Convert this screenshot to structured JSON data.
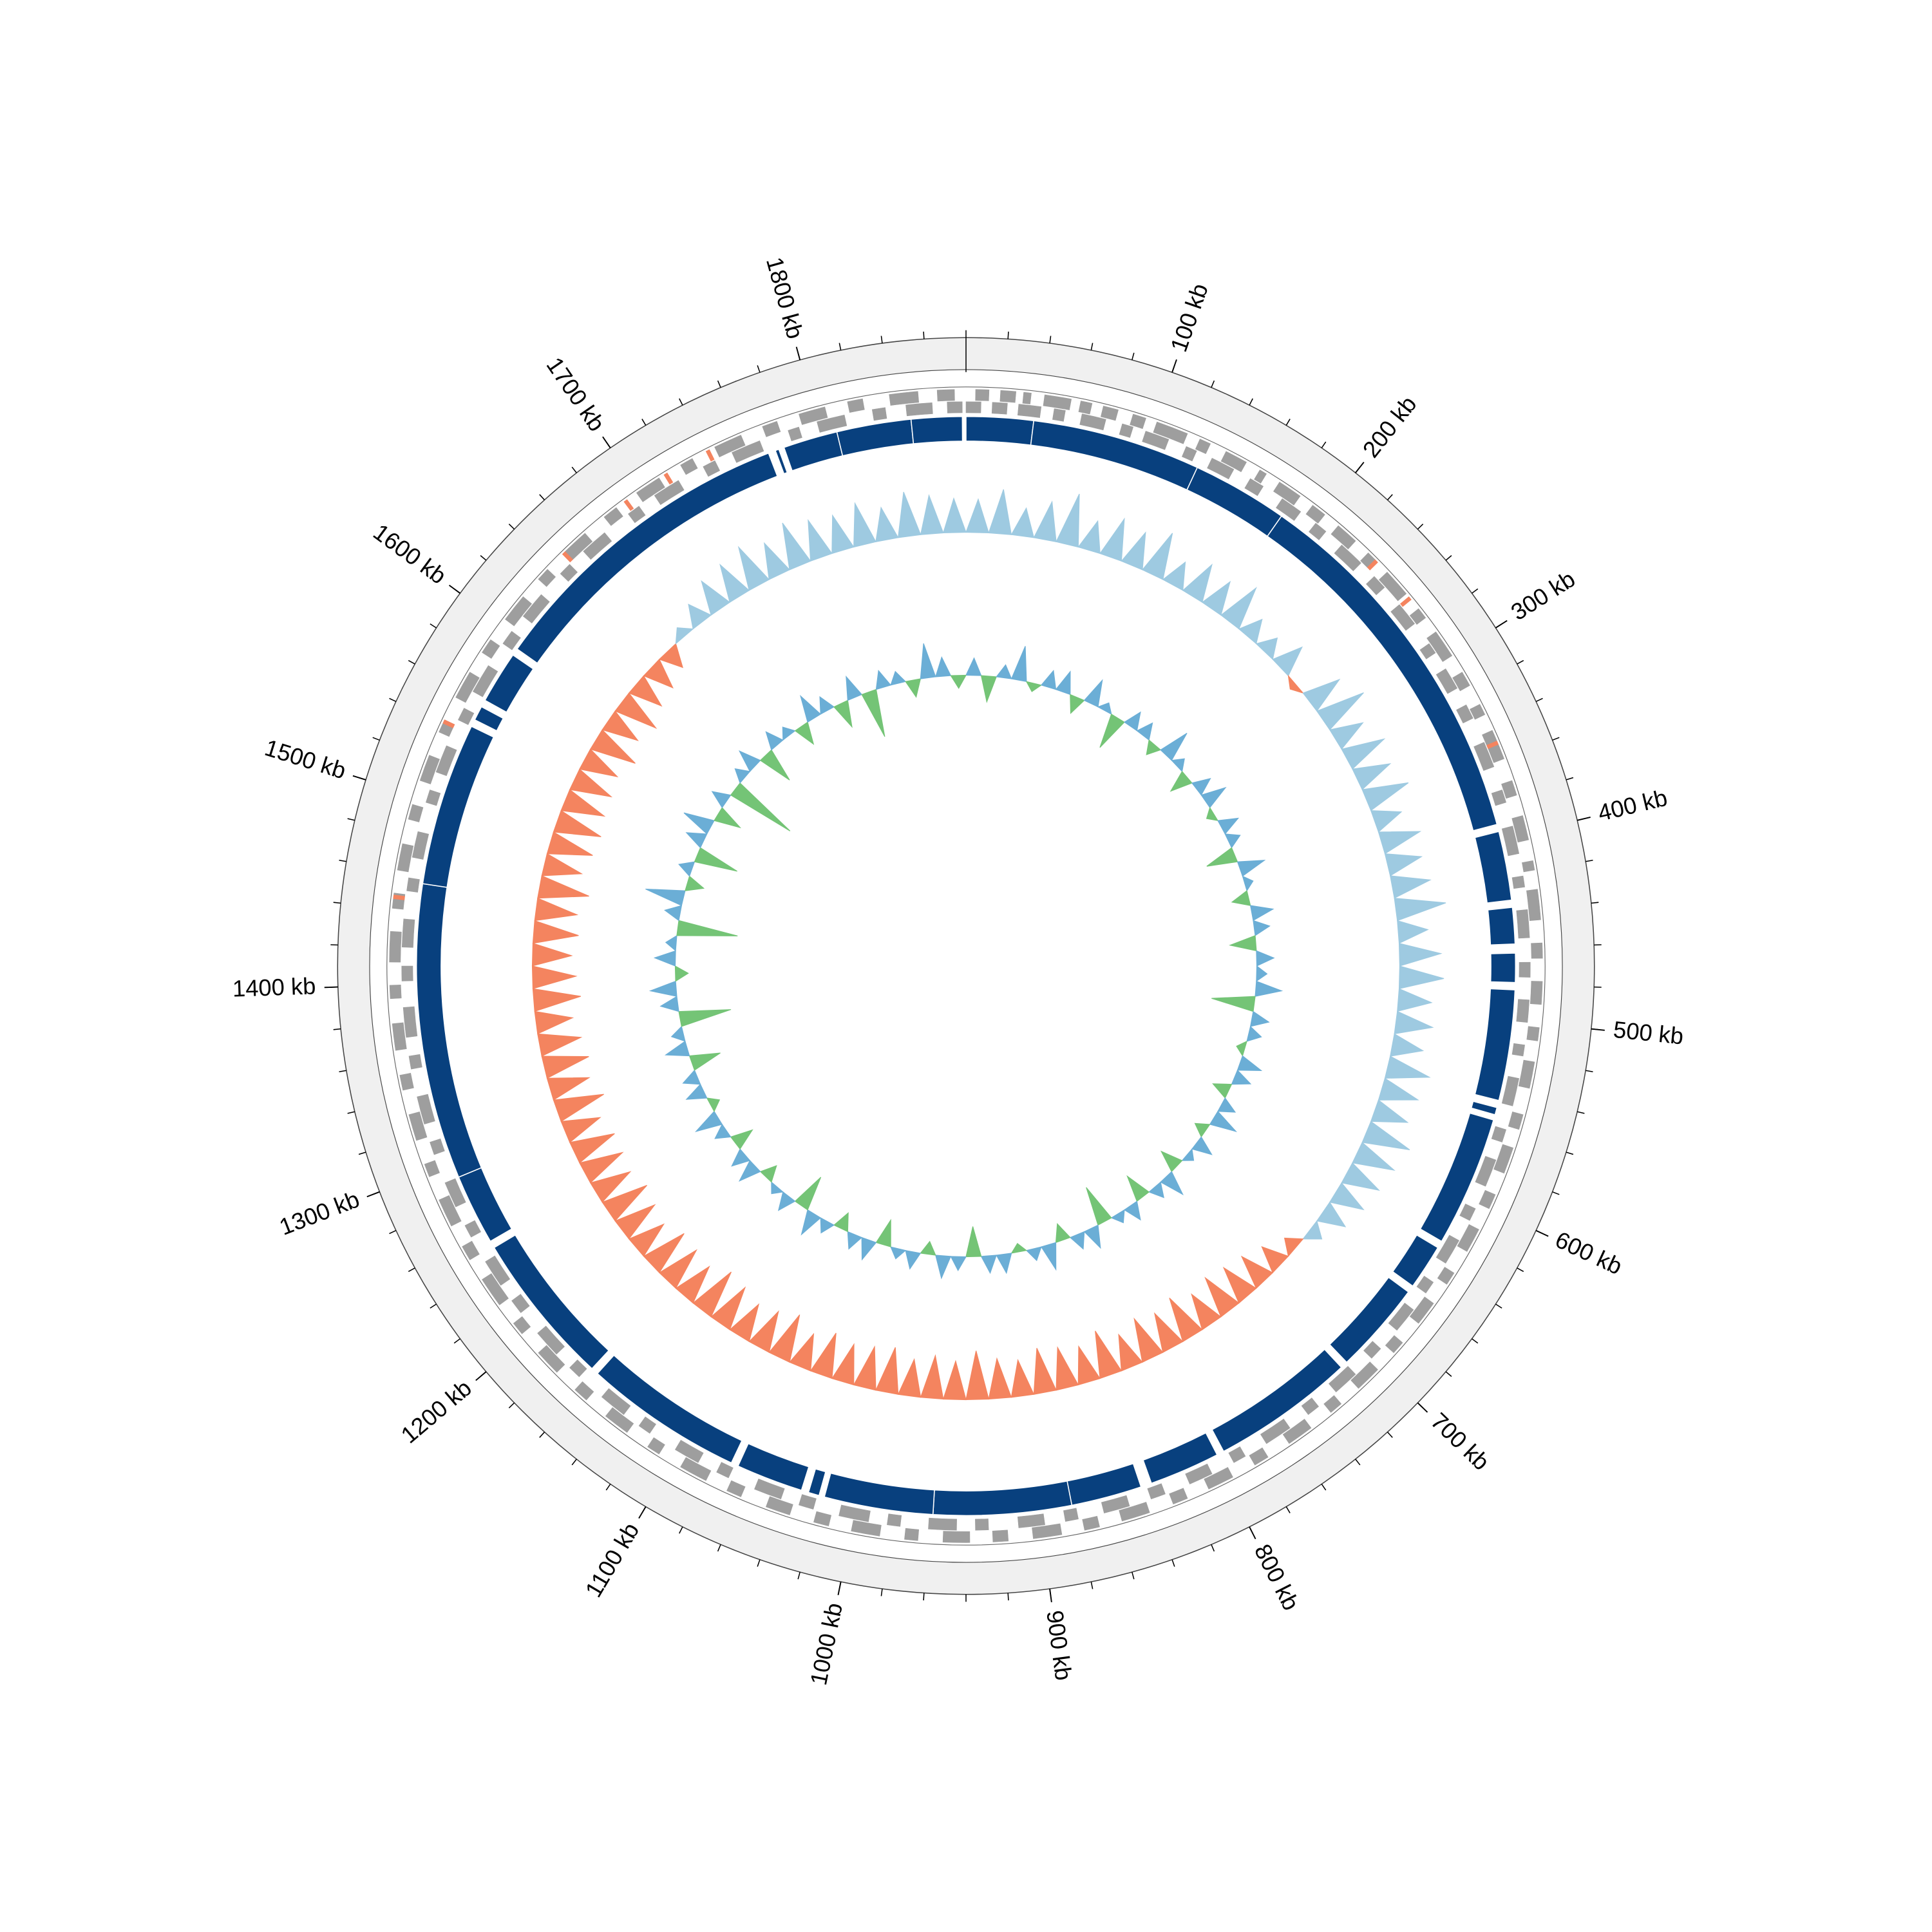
{
  "chart_data": {
    "type": "circos",
    "xlim": [
      0,
      1880
    ],
    "xticks": [
      {
        "value": 100,
        "label": "100 kb"
      },
      {
        "value": 200,
        "label": "200 kb"
      },
      {
        "value": 300,
        "label": "300 kb"
      },
      {
        "value": 400,
        "label": "400 kb"
      },
      {
        "value": 500,
        "label": "500 kb"
      },
      {
        "value": 600,
        "label": "600 kb"
      },
      {
        "value": 700,
        "label": "700 kb"
      },
      {
        "value": 800,
        "label": "800 kb"
      },
      {
        "value": 900,
        "label": "900 kb"
      },
      {
        "value": 1000,
        "label": "1000 kb"
      },
      {
        "value": 1100,
        "label": "1100 kb"
      },
      {
        "value": 1200,
        "label": "1200 kb"
      },
      {
        "value": 1300,
        "label": "1300 kb"
      },
      {
        "value": 1400,
        "label": "1400 kb"
      },
      {
        "value": 1500,
        "label": "1500 kb"
      },
      {
        "value": 1600,
        "label": "1600 kb"
      },
      {
        "value": 1700,
        "label": "1700 kb"
      },
      {
        "value": 1800,
        "label": "1800 kb"
      }
    ],
    "xminorticks": [
      0,
      20,
      40,
      60,
      80,
      100,
      120,
      140,
      160,
      180,
      200,
      220,
      240,
      260,
      280,
      300,
      320,
      340,
      360,
      380,
      400,
      420,
      440,
      460,
      480,
      500,
      520,
      540,
      560,
      580,
      600,
      620,
      640,
      660,
      680,
      700,
      720,
      740,
      760,
      780,
      800,
      820,
      840,
      860,
      880,
      900,
      920,
      940,
      960,
      980,
      1000,
      1020,
      1040,
      1060,
      1080,
      1100,
      1120,
      1140,
      1160,
      1180,
      1200,
      1220,
      1240,
      1260,
      1280,
      1300,
      1320,
      1340,
      1360,
      1380,
      1400,
      1420,
      1440,
      1460,
      1480,
      1500,
      1520,
      1540,
      1560,
      1580,
      1600,
      1620,
      1640,
      1660,
      1680,
      1700,
      1720,
      1740,
      1760,
      1780,
      1800,
      1820,
      1840,
      1860
    ],
    "band_color": "#f0f0f0",
    "features": {
      "color": "#9e9e9e",
      "forward": [
        [
          5,
          12
        ],
        [
          18,
          26
        ],
        [
          30,
          34
        ],
        [
          41,
          55
        ],
        [
          60,
          66
        ],
        [
          72,
          80
        ],
        [
          88,
          95
        ],
        [
          101,
          118
        ],
        [
          125,
          131
        ],
        [
          140,
          152
        ],
        [
          160,
          164
        ],
        [
          172,
          185
        ],
        [
          193,
          201
        ],
        [
          210,
          222
        ],
        [
          231,
          236
        ],
        [
          245,
          260
        ],
        [
          270,
          276
        ],
        [
          285,
          300
        ],
        [
          310,
          318
        ],
        [
          329,
          335
        ],
        [
          344,
          360
        ],
        [
          372,
          380
        ],
        [
          391,
          404
        ],
        [
          415,
          420
        ],
        [
          430,
          446
        ],
        [
          458,
          466
        ],
        [
          478,
          490
        ],
        [
          502,
          509
        ],
        [
          520,
          534
        ],
        [
          548,
          556
        ],
        [
          566,
          580
        ],
        [
          592,
          600
        ],
        [
          612,
          625
        ],
        [
          638,
          645
        ],
        [
          657,
          670
        ],
        [
          683,
          690
        ],
        [
          702,
          716
        ],
        [
          728,
          735
        ],
        [
          748,
          762
        ],
        [
          775,
          783
        ],
        [
          796,
          810
        ],
        [
          822,
          830
        ],
        [
          843,
          858
        ],
        [
          870,
          878
        ],
        [
          890,
          905
        ],
        [
          918,
          926
        ],
        [
          938,
          952
        ],
        [
          965,
          972
        ],
        [
          985,
          1000
        ],
        [
          1012,
          1020
        ],
        [
          1033,
          1046
        ],
        [
          1060,
          1068
        ],
        [
          1080,
          1095
        ],
        [
          1108,
          1115
        ],
        [
          1128,
          1142
        ],
        [
          1155,
          1163
        ],
        [
          1176,
          1190
        ],
        [
          1203,
          1210
        ],
        [
          1222,
          1238
        ],
        [
          1250,
          1258
        ],
        [
          1270,
          1285
        ],
        [
          1298,
          1305
        ],
        [
          1318,
          1332
        ],
        [
          1345,
          1353
        ],
        [
          1366,
          1380
        ],
        [
          1393,
          1400
        ],
        [
          1412,
          1428
        ],
        [
          1440,
          1448
        ],
        [
          1460,
          1474
        ],
        [
          1487,
          1495
        ],
        [
          1508,
          1522
        ],
        [
          1535,
          1542
        ],
        [
          1555,
          1570
        ],
        [
          1582,
          1590
        ],
        [
          1603,
          1618
        ],
        [
          1630,
          1637
        ],
        [
          1650,
          1664
        ],
        [
          1677,
          1685
        ],
        [
          1698,
          1712
        ],
        [
          1725,
          1732
        ],
        [
          1745,
          1760
        ],
        [
          1772,
          1780
        ],
        [
          1792,
          1806
        ],
        [
          1818,
          1826
        ],
        [
          1840,
          1855
        ],
        [
          1865,
          1874
        ]
      ],
      "reverse": [
        [
          0,
          8
        ],
        [
          14,
          22
        ],
        [
          28,
          40
        ],
        [
          47,
          53
        ],
        [
          62,
          75
        ],
        [
          84,
          90
        ],
        [
          97,
          110
        ],
        [
          120,
          126
        ],
        [
          135,
          148
        ],
        [
          158,
          166
        ],
        [
          178,
          190
        ],
        [
          200,
          207
        ],
        [
          218,
          232
        ],
        [
          242,
          250
        ],
        [
          262,
          275
        ],
        [
          288,
          294
        ],
        [
          304,
          316
        ],
        [
          326,
          334
        ],
        [
          348,
          362
        ],
        [
          375,
          382
        ],
        [
          395,
          410
        ],
        [
          422,
          428
        ],
        [
          440,
          455
        ],
        [
          468,
          476
        ],
        [
          488,
          500
        ],
        [
          512,
          518
        ],
        [
          530,
          545
        ],
        [
          558,
          565
        ],
        [
          575,
          590
        ],
        [
          603,
          610
        ],
        [
          622,
          636
        ],
        [
          648,
          655
        ],
        [
          666,
          680
        ],
        [
          693,
          700
        ],
        [
          712,
          726
        ],
        [
          738,
          745
        ],
        [
          757,
          772
        ],
        [
          785,
          792
        ],
        [
          805,
          818
        ],
        [
          832,
          840
        ],
        [
          852,
          866
        ],
        [
          880,
          887
        ],
        [
          898,
          912
        ],
        [
          928,
          935
        ],
        [
          945,
          960
        ],
        [
          975,
          982
        ],
        [
          992,
          1008
        ],
        [
          1022,
          1030
        ],
        [
          1040,
          1055
        ],
        [
          1070,
          1077
        ],
        [
          1088,
          1102
        ],
        [
          1118,
          1125
        ],
        [
          1135,
          1150
        ],
        [
          1166,
          1173
        ],
        [
          1183,
          1198
        ],
        [
          1212,
          1220
        ],
        [
          1230,
          1245
        ],
        [
          1260,
          1267
        ],
        [
          1278,
          1292
        ],
        [
          1308,
          1315
        ],
        [
          1325,
          1340
        ],
        [
          1355,
          1362
        ],
        [
          1372,
          1388
        ],
        [
          1402,
          1410
        ],
        [
          1420,
          1435
        ],
        [
          1450,
          1457
        ],
        [
          1468,
          1482
        ],
        [
          1498,
          1505
        ],
        [
          1515,
          1530
        ],
        [
          1545,
          1552
        ],
        [
          1562,
          1578
        ],
        [
          1592,
          1600
        ],
        [
          1610,
          1625
        ],
        [
          1640,
          1647
        ],
        [
          1657,
          1672
        ],
        [
          1688,
          1695
        ],
        [
          1705,
          1720
        ],
        [
          1735,
          1742
        ],
        [
          1752,
          1768
        ],
        [
          1784,
          1790
        ],
        [
          1800,
          1815
        ],
        [
          1830,
          1837
        ],
        [
          1848,
          1862
        ],
        [
          1870,
          1878
        ]
      ]
    },
    "rna": {
      "color": "#f4845f",
      "positions": [
        [
          236,
          238
        ],
        [
          262,
          264
        ],
        [
          350,
          352
        ],
        [
          1445,
          1447
        ],
        [
          1540,
          1542
        ],
        [
          1648,
          1650
        ],
        [
          1690,
          1692
        ],
        [
          1715,
          1717
        ],
        [
          1740,
          1742
        ]
      ]
    },
    "contigs": {
      "color": "#08407e",
      "blocks": [
        [
          0,
          37
        ],
        [
          37,
          130
        ],
        [
          130,
          183
        ],
        [
          183,
          392
        ],
        [
          396,
          434
        ],
        [
          438,
          458
        ],
        [
          463,
          479
        ],
        [
          483,
          544
        ],
        [
          548,
          552
        ],
        [
          555,
          627
        ],
        [
          631,
          656
        ],
        [
          660,
          711
        ],
        [
          715,
          794
        ],
        [
          798,
          837
        ],
        [
          843,
          882
        ],
        [
          882,
          958
        ],
        [
          958,
          1018
        ],
        [
          1021,
          1027
        ],
        [
          1031,
          1068
        ],
        [
          1072,
          1160
        ],
        [
          1164,
          1249
        ],
        [
          1253,
          1292
        ],
        [
          1292,
          1455
        ],
        [
          1455,
          1545
        ],
        [
          1549,
          1557
        ],
        [
          1561,
          1590
        ],
        [
          1594,
          1770
        ],
        [
          1774,
          1776
        ],
        [
          1779,
          1809
        ],
        [
          1809,
          1850
        ],
        [
          1850,
          1878
        ]
      ]
    },
    "gc_skew": {
      "ylim": [
        -0.1,
        0.1
      ],
      "pos_color": "#9ecae1",
      "neg_color": "#f4845f",
      "values": [
        0.045,
        0.06,
        0.038,
        0.052,
        0.07,
        0.041,
        0.055,
        0.048,
        0.062,
        0.035,
        0.05,
        0.044,
        0.058,
        0.03,
        0.025,
        0.04,
        -0.01,
        0.05,
        0.066,
        0.043,
        0.057,
        0.049,
        0.061,
        0.038,
        0.054,
        0.047,
        0.052,
        0.068,
        0.04,
        0.056,
        0.06,
        0.045,
        0.05,
        0.042,
        0.058,
        0.051,
        0.047,
        0.063,
        0.055,
        0.049,
        0.044,
        0.036,
        0.02,
        -0.02,
        -0.035,
        -0.045,
        -0.05,
        -0.055,
        -0.048,
        -0.06,
        -0.052,
        -0.058,
        -0.047,
        -0.063,
        -0.05,
        -0.056,
        -0.061,
        -0.049,
        -0.054,
        -0.066,
        -0.052,
        -0.058,
        -0.05,
        -0.062,
        -0.057,
        -0.053,
        -0.06,
        -0.048,
        -0.064,
        -0.055,
        -0.05,
        -0.059,
        -0.065,
        -0.052,
        -0.057,
        -0.061,
        -0.049,
        -0.056,
        -0.063,
        -0.054,
        -0.058,
        -0.06,
        -0.051,
        -0.067,
        -0.055,
        -0.062,
        -0.057,
        -0.05,
        -0.064,
        -0.059,
        -0.053,
        -0.061,
        -0.056,
        -0.068,
        -0.052,
        -0.06,
        -0.063,
        -0.057,
        -0.055,
        -0.05,
        -0.062,
        -0.048,
        -0.058,
        -0.045,
        -0.04,
        -0.03,
        0.015,
        0.03,
        0.045,
        0.05,
        0.058,
        0.047,
        0.062,
        0.053,
        0.049,
        0.057,
        0.044,
        0.06,
        0.052,
        0.046
      ]
    },
    "gc_content": {
      "ylim": [
        -0.1,
        0.1
      ],
      "pos_color": "#6baed6",
      "neg_color": "#74c476",
      "values": [
        0.02,
        -0.03,
        0.015,
        0.04,
        -0.01,
        0.02,
        0.025,
        -0.02,
        0.03,
        0.01,
        -0.04,
        0.02,
        0.018,
        -0.015,
        0.035,
        0.012,
        -0.025,
        0.02,
        0.028,
        -0.01,
        0.022,
        0.015,
        -0.035,
        0.03,
        0.01,
        -0.02,
        0.025,
        0.018,
        -0.03,
        0.02,
        0.012,
        0.03,
        -0.05,
        0.02,
        0.015,
        -0.01,
        0.026,
        0.02,
        -0.02,
        0.018,
        0.03,
        -0.015,
        0.022,
        0.01,
        -0.025,
        0.028,
        0.016,
        -0.03,
        0.02,
        0.012,
        -0.045,
        0.025,
        0.018,
        -0.02,
        0.03,
        0.014,
        -0.01,
        0.022,
        0.02,
        -0.035,
        0.016,
        0.026,
        -0.015,
        0.02,
        0.012,
        -0.03,
        0.024,
        0.018,
        -0.02,
        0.015,
        0.028,
        -0.04,
        0.02,
        0.01,
        -0.018,
        0.025,
        0.02,
        -0.025,
        0.016,
        0.03,
        -0.012,
        0.022,
        0.018,
        -0.035,
        0.026,
        0.014,
        -0.06,
        0.02,
        0.03,
        -0.015,
        0.024,
        0.012,
        -0.07,
        0.018,
        0.045,
        -0.02,
        0.016,
        -0.05,
        0.022,
        0.035,
        -0.03,
        0.02,
        -0.08,
        0.015,
        0.025,
        -0.04,
        0.02,
        0.012,
        -0.025,
        0.03,
        0.018,
        -0.03,
        0.026,
        -0.055,
        0.02,
        0.014,
        -0.02,
        0.04,
        0.022,
        -0.015
      ]
    }
  }
}
